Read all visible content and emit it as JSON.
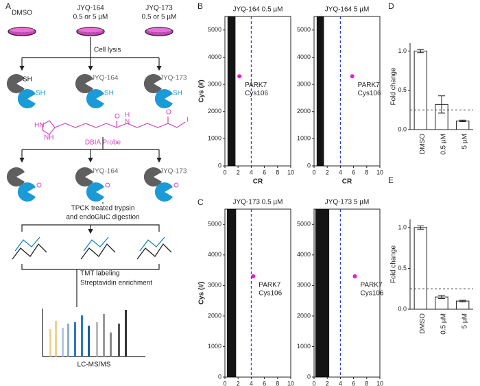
{
  "panel_labels": [
    "A",
    "B",
    "C",
    "D",
    "E"
  ],
  "workflow": {
    "conditions": [
      {
        "name": "DMSO"
      },
      {
        "name": "JYQ-164",
        "dose": "0.5 or 5  µM"
      },
      {
        "name": "JYQ-173",
        "dose": "0.5 or 5  µM"
      }
    ],
    "lysis": "Cell lysis",
    "thiol": "SH",
    "compounds": [
      "JYQ-164",
      "JYQ-173"
    ],
    "probe": "DBIA Probe",
    "probe_atoms": [
      "HN",
      "NH",
      "O",
      "H",
      "N",
      "I"
    ],
    "digestion": [
      "TPCK treated trypsin",
      "and endoGluC digestion"
    ],
    "enrichment": [
      "TMT labeling",
      "Streptavidin enrichment"
    ],
    "readout": "LC-MS/MS"
  },
  "chart_data": [
    {
      "type": "scatter",
      "title": "JYQ-164 0.5 µM",
      "xlabel": "CR",
      "ylabel": "Cys (#)",
      "xlim": [
        0,
        10
      ],
      "ylim": [
        0,
        5500
      ],
      "xticks": [
        0,
        2,
        4,
        6,
        8,
        10
      ],
      "yticks": [
        0,
        1000,
        2000,
        3000,
        4000,
        5000
      ],
      "threshold": 4,
      "threshold_color": "#2a3fd0",
      "cloud": {
        "x": [
          0.4,
          1.6
        ],
        "y": [
          0,
          5500
        ],
        "color": "#000000"
      },
      "points": [
        {
          "x": 2.2,
          "y": 3300,
          "label": [
            "PARK7",
            "Cys106"
          ],
          "color": "#e020d0"
        }
      ]
    },
    {
      "type": "scatter",
      "title": "JYQ-164 5 µM",
      "xlabel": "CR",
      "xlim": [
        0,
        10
      ],
      "ylim": [
        0,
        5500
      ],
      "xticks": [
        0,
        2,
        4,
        6,
        8,
        10
      ],
      "yticks": [
        0,
        1000,
        2000,
        3000,
        4000,
        5000
      ],
      "threshold": 4,
      "threshold_color": "#2a3fd0",
      "cloud": {
        "x": [
          0.4,
          1.5
        ],
        "y": [
          0,
          5500
        ],
        "color": "#000000"
      },
      "points": [
        {
          "x": 5.8,
          "y": 3300,
          "label": [
            "PARK7",
            "Cys106"
          ],
          "color": "#e020d0"
        }
      ]
    },
    {
      "type": "scatter",
      "title": "JYQ-173 0.5 µM",
      "xlabel": "CR",
      "ylabel": "Cys (#)",
      "xlim": [
        0,
        10
      ],
      "ylim": [
        0,
        5500
      ],
      "xticks": [
        0,
        2,
        4,
        6,
        8,
        10
      ],
      "yticks": [
        0,
        1000,
        2000,
        3000,
        4000,
        5000
      ],
      "threshold": 4,
      "threshold_color": "#2a3fd0",
      "cloud": {
        "x": [
          0.3,
          1.7
        ],
        "y": [
          0,
          5500
        ],
        "color": "#000000"
      },
      "points": [
        {
          "x": 4.3,
          "y": 3300,
          "label": [
            "PARK7",
            "Cys106"
          ],
          "color": "#e020d0"
        }
      ]
    },
    {
      "type": "scatter",
      "title": "JYQ-173 5 µM",
      "xlabel": "CR",
      "xlim": [
        0,
        10
      ],
      "ylim": [
        0,
        5500
      ],
      "xticks": [
        0,
        2,
        4,
        6,
        8,
        10
      ],
      "yticks": [
        0,
        1000,
        2000,
        3000,
        4000,
        5000
      ],
      "threshold": 4,
      "threshold_color": "#2a3fd0",
      "cloud": {
        "x": [
          0.2,
          2.3
        ],
        "y": [
          0,
          5500
        ],
        "color": "#000000"
      },
      "points": [
        {
          "x": 6.2,
          "y": 3300,
          "label": [
            "PARK7",
            "Cys106"
          ],
          "color": "#e020d0"
        }
      ]
    },
    {
      "type": "bar",
      "ylabel": "Fold change",
      "categories": [
        "DMSO",
        "0.5 µM",
        "5 µM"
      ],
      "values": [
        1.0,
        0.32,
        0.11
      ],
      "errors": [
        0.02,
        0.11,
        0.01
      ],
      "color": "#ffffff",
      "ylim": [
        0,
        1.1
      ],
      "yticks": [
        {
          "value": 0,
          "label": "0.0"
        },
        {
          "value": 0.5,
          "label": "0.5"
        },
        {
          "value": 1,
          "label": "1.0"
        }
      ],
      "threshold": 0.25
    },
    {
      "type": "bar",
      "ylabel": "Fold change",
      "categories": [
        "DMSO",
        "0.5 µM",
        "5 µM"
      ],
      "values": [
        1.0,
        0.15,
        0.1
      ],
      "errors": [
        0.02,
        0.02,
        0.01
      ],
      "color": "#ffffff",
      "ylim": [
        0,
        1.1
      ],
      "yticks": [
        {
          "value": 0,
          "label": "0.0"
        },
        {
          "value": 0.5,
          "label": "0.5"
        },
        {
          "value": 1,
          "label": "1.0"
        }
      ],
      "threshold": 0.25
    }
  ]
}
